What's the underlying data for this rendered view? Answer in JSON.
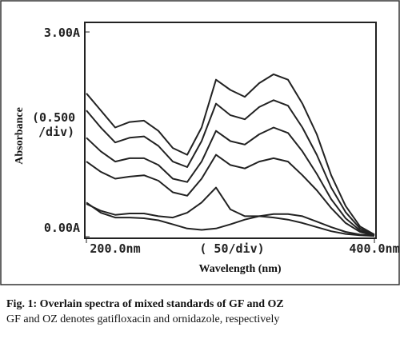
{
  "chart_data": {
    "type": "line",
    "x_label": "Wavelength (nm)",
    "y_label": "Absorbance",
    "y_scale_note": [
      "(0.500",
      "/div)"
    ],
    "x_scale_note": "( 50/div)",
    "x": [
      200,
      210,
      220,
      230,
      240,
      250,
      260,
      270,
      280,
      290,
      300,
      310,
      320,
      330,
      340,
      350,
      360,
      370,
      380,
      390,
      400
    ],
    "series": [
      {
        "color": "#222222",
        "values": [
          2.1,
          1.85,
          1.6,
          1.68,
          1.7,
          1.55,
          1.3,
          1.2,
          1.6,
          2.3,
          2.15,
          2.05,
          2.25,
          2.38,
          2.3,
          1.95,
          1.5,
          0.9,
          0.45,
          0.15,
          0.03
        ]
      },
      {
        "color": "#222222",
        "values": [
          1.85,
          1.6,
          1.38,
          1.45,
          1.47,
          1.33,
          1.1,
          1.02,
          1.4,
          1.95,
          1.78,
          1.72,
          1.9,
          2.0,
          1.92,
          1.6,
          1.2,
          0.72,
          0.36,
          0.12,
          0.02
        ]
      },
      {
        "color": "#222222",
        "values": [
          1.45,
          1.25,
          1.1,
          1.15,
          1.15,
          1.05,
          0.85,
          0.8,
          1.1,
          1.55,
          1.4,
          1.35,
          1.5,
          1.6,
          1.52,
          1.25,
          0.92,
          0.55,
          0.27,
          0.09,
          0.02
        ]
      },
      {
        "color": "#222222",
        "values": [
          1.1,
          0.95,
          0.85,
          0.88,
          0.9,
          0.82,
          0.65,
          0.6,
          0.85,
          1.2,
          1.05,
          1.0,
          1.1,
          1.15,
          1.1,
          0.9,
          0.68,
          0.42,
          0.2,
          0.07,
          0.01
        ]
      },
      {
        "color": "#222222",
        "values": [
          0.48,
          0.38,
          0.32,
          0.34,
          0.34,
          0.3,
          0.28,
          0.35,
          0.5,
          0.72,
          0.4,
          0.3,
          0.3,
          0.28,
          0.25,
          0.2,
          0.14,
          0.08,
          0.04,
          0.02,
          0.01
        ]
      },
      {
        "color": "#222222",
        "values": [
          0.5,
          0.35,
          0.28,
          0.28,
          0.27,
          0.24,
          0.18,
          0.12,
          0.1,
          0.12,
          0.18,
          0.25,
          0.3,
          0.33,
          0.33,
          0.3,
          0.22,
          0.14,
          0.07,
          0.03,
          0.01
        ]
      }
    ],
    "xlim": [
      200,
      400
    ],
    "ylim": [
      0,
      3
    ],
    "xticks": [
      {
        "value": 200,
        "label": "200.0nm"
      },
      {
        "value": 400,
        "label": "400.0nm"
      }
    ],
    "yticks": [
      {
        "value": 0,
        "label": "0.00A"
      },
      {
        "value": 3,
        "label": "3.00A"
      }
    ]
  },
  "caption": {
    "title": "Fig. 1: Overlain spectra of mixed standards of GF and OZ",
    "note": "GF and OZ denotes gatifloxacin and ornidazole, respectively"
  }
}
